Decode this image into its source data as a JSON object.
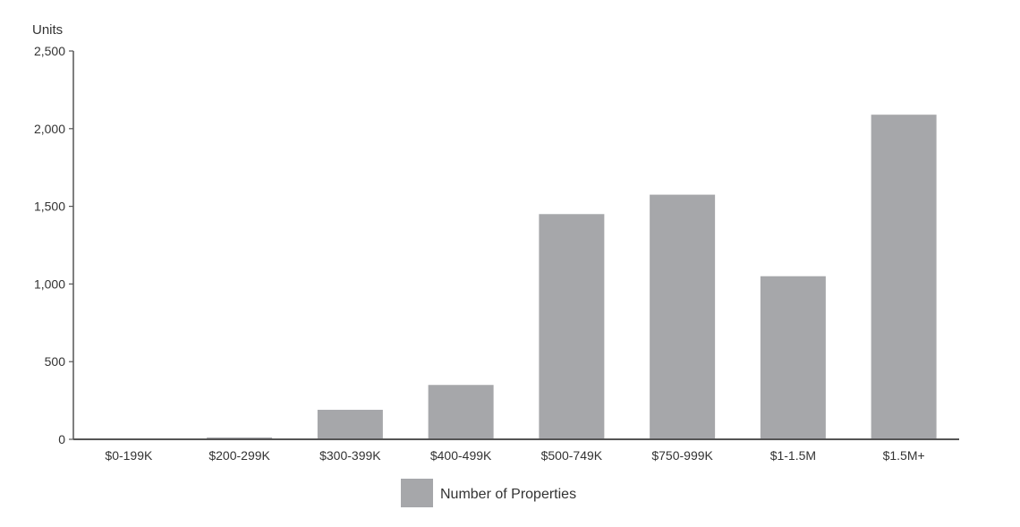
{
  "chart_data": {
    "type": "bar",
    "categories": [
      "$0-199K",
      "$200-299K",
      "$300-399K",
      "$400-499K",
      "$500-749K",
      "$750-999K",
      "$1-1.5M",
      "$1.5M+"
    ],
    "series": [
      {
        "name": "Number of Properties",
        "values": [
          3,
          12,
          190,
          350,
          1450,
          1575,
          1050,
          2090
        ],
        "color": "#a6a7aa"
      }
    ],
    "ylabel": "Units",
    "ylim": [
      0,
      2500
    ],
    "yticks": [
      0,
      500,
      1000,
      1500,
      2000,
      2500
    ],
    "ytick_labels": [
      "0",
      "500",
      "1,000",
      "1,500",
      "2,000",
      "2,500"
    ],
    "grid": false,
    "legend_position": "bottom-center",
    "axis_color": "#555555"
  }
}
